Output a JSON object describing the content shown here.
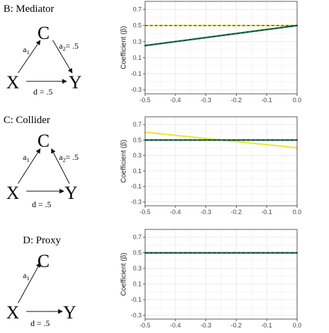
{
  "panels": [
    {
      "label": "B: Mediator",
      "diagram": {
        "c": "C",
        "x": "X",
        "y": "Y",
        "a1": "a",
        "a1_sub": "1",
        "a2": "a",
        "a2_sub": "2",
        "a2_val": "= .5",
        "d": "d = .5"
      },
      "show_a2": true
    },
    {
      "label": "C: Collider",
      "diagram": {
        "c": "C",
        "x": "X",
        "y": "Y",
        "a1": "a",
        "a1_sub": "1",
        "a2": "a",
        "a2_sub": "2",
        "a2_val": "= .5",
        "d": "d = .5"
      },
      "show_a2": true
    },
    {
      "label": "D: Proxy",
      "diagram": {
        "c": "C",
        "x": "X",
        "y": "Y",
        "a1": "a",
        "a1_sub": "1",
        "d": "d = .5"
      },
      "show_a2": false
    }
  ],
  "colors": {
    "yellow": "#f0e442",
    "green": "#1a7a4c",
    "dashed": "#222222",
    "grid": "#ebebeb",
    "border": "#333333"
  },
  "chart_data": [
    {
      "type": "line",
      "ylabel": "Coefficient (β)",
      "xlim": [
        -0.5,
        0.0
      ],
      "ylim": [
        -0.35,
        0.8
      ],
      "x_ticks": [
        "-0.5",
        "-0.4",
        "-0.3",
        "-0.2",
        "-0.1",
        "0.0"
      ],
      "y_ticks": [
        "0.7",
        "0.5",
        "0.3",
        "0.1",
        "-0.1",
        "-0.3"
      ],
      "reference_line": 0.5,
      "series": [
        {
          "color": "yellow",
          "x": [
            -0.5,
            0.0
          ],
          "y": [
            0.5,
            0.5
          ]
        },
        {
          "color": "green",
          "x": [
            -0.5,
            0.0
          ],
          "y": [
            0.25,
            0.5
          ]
        }
      ]
    },
    {
      "type": "line",
      "ylabel": "Coefficient (β)",
      "xlim": [
        -0.5,
        0.0
      ],
      "ylim": [
        -0.35,
        0.8
      ],
      "x_ticks": [
        "-0.5",
        "-0.4",
        "-0.3",
        "-0.2",
        "-0.1",
        "0.0"
      ],
      "y_ticks": [
        "0.7",
        "0.5",
        "0.3",
        "0.1",
        "-0.1",
        "-0.3"
      ],
      "reference_line": 0.5,
      "series": [
        {
          "color": "yellow",
          "x": [
            -0.5,
            0.0
          ],
          "y": [
            0.6,
            0.4
          ]
        },
        {
          "color": "green",
          "x": [
            -0.5,
            0.0
          ],
          "y": [
            0.5,
            0.5
          ]
        }
      ]
    },
    {
      "type": "line",
      "ylabel": "Coefficient (β)",
      "xlim": [
        -0.5,
        0.0
      ],
      "ylim": [
        -0.35,
        0.8
      ],
      "x_ticks": [
        "-0.5",
        "-0.4",
        "-0.3",
        "-0.2",
        "-0.1",
        "0.0"
      ],
      "y_ticks": [
        "0.7",
        "0.5",
        "0.3",
        "0.1",
        "-0.1",
        "-0.3"
      ],
      "reference_line": 0.5,
      "series": [
        {
          "color": "yellow",
          "x": [
            -0.5,
            0.0
          ],
          "y": [
            0.5,
            0.5
          ]
        },
        {
          "color": "green",
          "x": [
            -0.5,
            0.0
          ],
          "y": [
            0.5,
            0.5
          ]
        }
      ]
    }
  ]
}
